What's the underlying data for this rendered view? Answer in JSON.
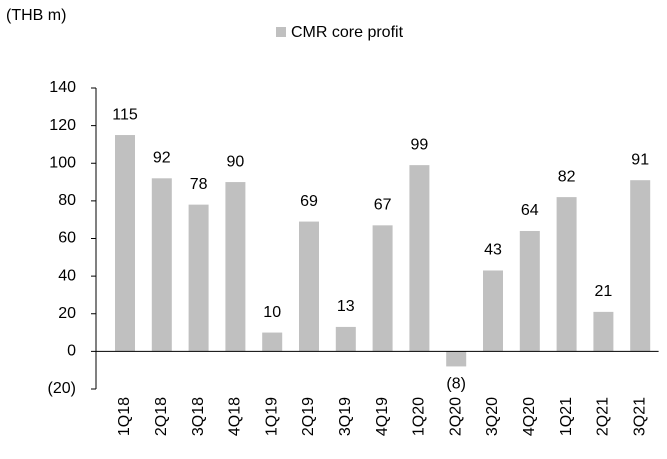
{
  "chart_data": {
    "type": "bar",
    "y_axis_label": "(THB m)",
    "categories": [
      "1Q18",
      "2Q18",
      "3Q18",
      "4Q18",
      "1Q19",
      "2Q19",
      "3Q19",
      "4Q19",
      "1Q20",
      "2Q20",
      "3Q20",
      "4Q20",
      "1Q21",
      "2Q21",
      "3Q21"
    ],
    "series": [
      {
        "name": "CMR core profit",
        "color": "#c0c0c0",
        "values": [
          115,
          92,
          78,
          90,
          10,
          69,
          13,
          67,
          99,
          -8,
          43,
          64,
          82,
          21,
          91
        ],
        "value_labels": [
          "115",
          "92",
          "78",
          "90",
          "10",
          "69",
          "13",
          "67",
          "99",
          "(8)",
          "43",
          "64",
          "82",
          "21",
          "91"
        ]
      }
    ],
    "ylim": [
      -20,
      140
    ],
    "yticks": [
      {
        "value": -20,
        "label": "(20)"
      },
      0,
      20,
      40,
      60,
      80,
      100,
      120,
      140
    ],
    "legend": "top",
    "grid": false
  }
}
